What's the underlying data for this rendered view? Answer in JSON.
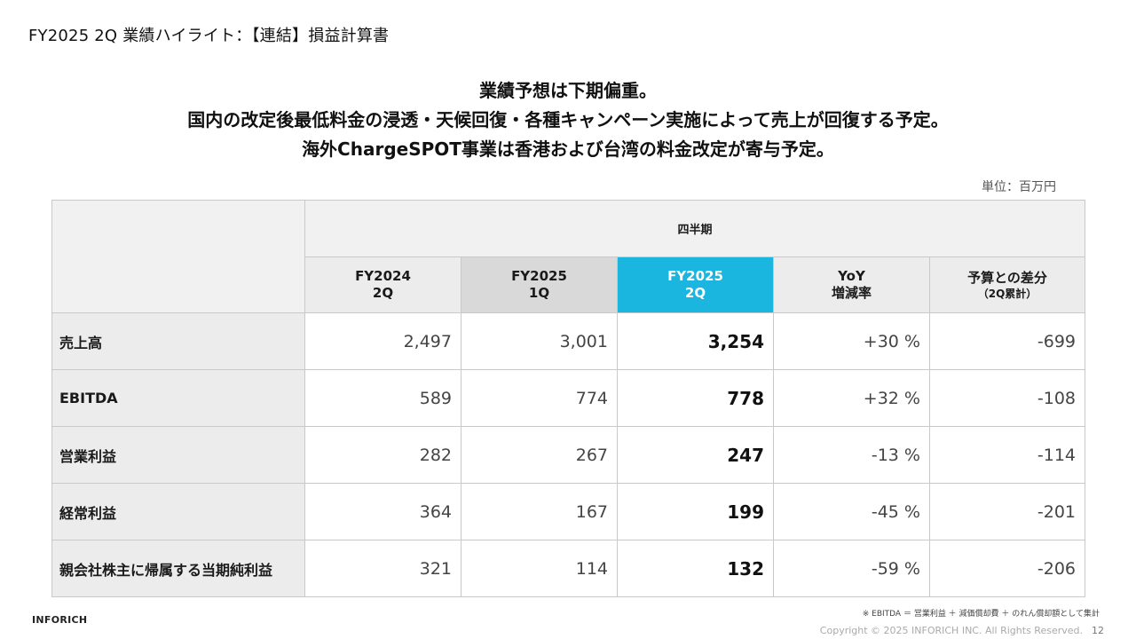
{
  "slide": {
    "title": "FY2025 2Q 業績ハイライト：【連結】損益計算書",
    "headline_lines": [
      "業績予想は下期偏重。",
      "国内の改定後最低料金の浸透・天候回復・各種キャンペーン実施によって売上が回復する予定。",
      "海外ChargeSPOT事業は香港および台湾の料金改定が寄与予定。"
    ],
    "unit_note": "単位：百万円"
  },
  "table": {
    "group_header": "四半期",
    "columns": [
      {
        "line1": "FY2024",
        "line2": "2Q"
      },
      {
        "line1": "FY2025",
        "line2": "1Q"
      },
      {
        "line1": "FY2025",
        "line2": "2Q"
      },
      {
        "line1": "YoY",
        "line2": "増減率"
      },
      {
        "line1": "予算との差分",
        "line2": "（2Q累計）"
      }
    ],
    "rows": [
      {
        "label": "売上高",
        "values": [
          "2,497",
          "3,001",
          "3,254",
          "+30 %",
          "-699"
        ]
      },
      {
        "label": "EBITDA",
        "values": [
          "589",
          "774",
          "778",
          "+32 %",
          "-108"
        ]
      },
      {
        "label": "営業利益",
        "values": [
          "282",
          "267",
          "247",
          "-13 %",
          "-114"
        ]
      },
      {
        "label": "経常利益",
        "values": [
          "364",
          "167",
          "199",
          "-45 %",
          "-201"
        ]
      },
      {
        "label": "親会社株主に帰属する当期純利益",
        "values": [
          "321",
          "114",
          "132",
          "-59 %",
          "-206"
        ]
      }
    ]
  },
  "footer": {
    "brand": "INFORICH",
    "footnote": "※ EBITDA ＝ 営業利益 ＋ 減価償却費 ＋ のれん償却額として集計",
    "copyright": "Copyright © 2025 INFORICH INC. All Rights Reserved.",
    "page_number": "12"
  },
  "colors": {
    "highlight_column": "#1ab6e0",
    "header_gray": "#ececec",
    "prev_quarter_gray": "#d9d9d9"
  }
}
